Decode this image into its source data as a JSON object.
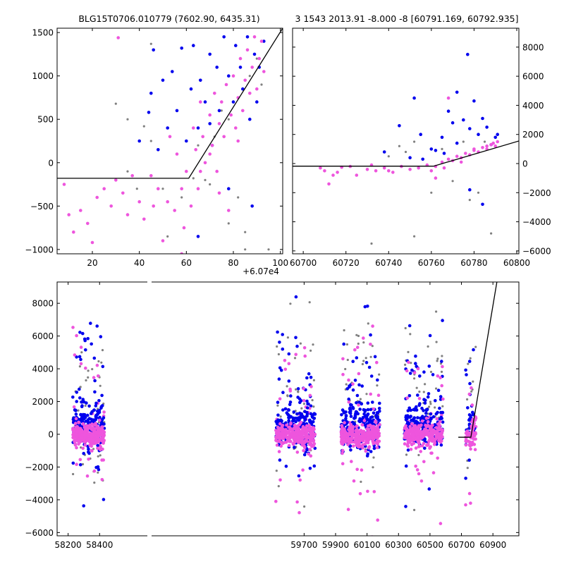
{
  "titles": {
    "left": "BLG15T0706.010779 (7602.90, 6435.31)",
    "right": "3 1543 2013.91 -8.000 -8 [60791.169, 60792.935]"
  },
  "colors": {
    "blue": "#0000ee",
    "pink": "#ee55dd",
    "gray": "#808080",
    "model_line": "#000000"
  },
  "chart_data": [
    {
      "id": "zoom-left",
      "type": "scatter",
      "title": "BLG15T0706.010779 (7602.90, 6435.31)",
      "xlim": [
        60705,
        60801
      ],
      "ylim": [
        -1050,
        1550
      ],
      "x_ticks": [
        60720,
        60740,
        60760,
        60780,
        60800
      ],
      "x_tick_labels": [
        "20",
        "40",
        "60",
        "80",
        "100"
      ],
      "x_offset_label": "+6.07e4",
      "y_ticks": [
        -1000,
        -500,
        0,
        500,
        1000,
        1500
      ],
      "y_tick_labels": [
        "−1000",
        "−500",
        "0",
        "500",
        "1000",
        "1500"
      ],
      "yaxis_side": "left",
      "model_line": [
        [
          60700,
          -180
        ],
        [
          60761,
          -180
        ],
        [
          60801,
          1550
        ]
      ],
      "series": [
        {
          "name": "gray",
          "color": "#808080",
          "size": 1.6,
          "values": [
            [
              60730,
              680
            ],
            [
              60735,
              -100
            ],
            [
              60735,
              500
            ],
            [
              60739,
              -300
            ],
            [
              60745,
              250
            ],
            [
              60742,
              420
            ],
            [
              60750,
              -300
            ],
            [
              60752,
              -850
            ],
            [
              60758,
              -400
            ],
            [
              60763,
              -180
            ],
            [
              60765,
              200
            ],
            [
              60768,
              -200
            ],
            [
              60772,
              300
            ],
            [
              60775,
              600
            ],
            [
              60778,
              500
            ],
            [
              60782,
              -400
            ],
            [
              60785,
              -800
            ],
            [
              60787,
              1000
            ],
            [
              60790,
              1200
            ],
            [
              60792,
              900
            ],
            [
              60795,
              -1000
            ],
            [
              60745,
              1370
            ],
            [
              60770,
              -250
            ],
            [
              60778,
              -700
            ],
            [
              60785,
              -1000
            ]
          ]
        },
        {
          "name": "blue",
          "color": "#0000ee",
          "size": 2.3,
          "values": [
            [
              60740,
              250
            ],
            [
              60744,
              580
            ],
            [
              60745,
              800
            ],
            [
              60746,
              1300
            ],
            [
              60748,
              150
            ],
            [
              60750,
              950
            ],
            [
              60752,
              400
            ],
            [
              60754,
              1050
            ],
            [
              60756,
              600
            ],
            [
              60758,
              1320
            ],
            [
              60760,
              250
            ],
            [
              60762,
              850
            ],
            [
              60763,
              1350
            ],
            [
              60765,
              400
            ],
            [
              60766,
              950
            ],
            [
              60768,
              700
            ],
            [
              60770,
              1250
            ],
            [
              60771,
              200
            ],
            [
              60773,
              1100
            ],
            [
              60774,
              600
            ],
            [
              60776,
              1450
            ],
            [
              60778,
              1000
            ],
            [
              60780,
              700
            ],
            [
              60781,
              1350
            ],
            [
              60783,
              1100
            ],
            [
              60784,
              850
            ],
            [
              60786,
              1450
            ],
            [
              60787,
              500
            ],
            [
              60789,
              1250
            ],
            [
              60790,
              700
            ],
            [
              60791,
              1100
            ],
            [
              60793,
              1400
            ],
            [
              60788,
              -500
            ],
            [
              60765,
              -850
            ],
            [
              60778,
              -300
            ],
            [
              60770,
              450
            ]
          ]
        },
        {
          "name": "pink",
          "color": "#ee55dd",
          "size": 2.3,
          "values": [
            [
              60708,
              -250
            ],
            [
              60710,
              -600
            ],
            [
              60712,
              -800
            ],
            [
              60715,
              -550
            ],
            [
              60718,
              -700
            ],
            [
              60720,
              -920
            ],
            [
              60722,
              -400
            ],
            [
              60725,
              -300
            ],
            [
              60728,
              -500
            ],
            [
              60730,
              -200
            ],
            [
              60731,
              1440
            ],
            [
              60733,
              -350
            ],
            [
              60735,
              -600
            ],
            [
              60737,
              -150
            ],
            [
              60740,
              -450
            ],
            [
              60742,
              -650
            ],
            [
              60745,
              -150
            ],
            [
              60746,
              -500
            ],
            [
              60748,
              -300
            ],
            [
              60750,
              -900
            ],
            [
              60752,
              -450
            ],
            [
              60753,
              300
            ],
            [
              60755,
              -550
            ],
            [
              60756,
              100
            ],
            [
              60758,
              -300
            ],
            [
              60759,
              -750
            ],
            [
              60760,
              -100
            ],
            [
              60762,
              -500
            ],
            [
              60763,
              400
            ],
            [
              60764,
              150
            ],
            [
              60765,
              -300
            ],
            [
              60766,
              700
            ],
            [
              60767,
              300
            ],
            [
              60768,
              0
            ],
            [
              60770,
              550
            ],
            [
              60771,
              200
            ],
            [
              60772,
              800
            ],
            [
              60773,
              -100
            ],
            [
              60774,
              450
            ],
            [
              60775,
              700
            ],
            [
              60776,
              300
            ],
            [
              60777,
              900
            ],
            [
              60778,
              -550
            ],
            [
              60779,
              550
            ],
            [
              60780,
              1000
            ],
            [
              60781,
              400
            ],
            [
              60782,
              750
            ],
            [
              60783,
              1200
            ],
            [
              60784,
              600
            ],
            [
              60785,
              950
            ],
            [
              60786,
              1300
            ],
            [
              60787,
              800
            ],
            [
              60788,
              1100
            ],
            [
              60789,
              1450
            ],
            [
              60790,
              850
            ],
            [
              60791,
              1200
            ],
            [
              60792,
              1400
            ],
            [
              60793,
              1050
            ],
            [
              60770,
              100
            ],
            [
              60782,
              250
            ],
            [
              60766,
              -100
            ],
            [
              60774,
              -350
            ],
            [
              60758,
              -1050
            ]
          ]
        }
      ]
    },
    {
      "id": "zoom-right",
      "type": "scatter",
      "xlim": [
        60695,
        60801
      ],
      "ylim": [
        -6200,
        9300
      ],
      "x_ticks": [
        60700,
        60720,
        60740,
        60760,
        60780,
        60800
      ],
      "x_tick_labels": [
        "60700",
        "60720",
        "60740",
        "60760",
        "60780",
        "60800"
      ],
      "y_ticks": [
        -6000,
        -4000,
        -2000,
        0,
        2000,
        4000,
        6000,
        8000
      ],
      "y_tick_labels": [
        "−6000",
        "−4000",
        "−2000",
        "0",
        "2000",
        "4000",
        "6000",
        "8000"
      ],
      "yaxis_side": "right",
      "model_line": [
        [
          60695,
          -180
        ],
        [
          60761,
          -180
        ],
        [
          60801,
          1550
        ]
      ],
      "series": [
        {
          "name": "gray",
          "color": "#808080",
          "size": 1.6,
          "values": [
            [
              60732,
              -5500
            ],
            [
              60752,
              -5000
            ],
            [
              60788,
              -4800
            ],
            [
              60760,
              -2000
            ],
            [
              60770,
              -1200
            ],
            [
              60778,
              -2500
            ],
            [
              60782,
              -2000
            ],
            [
              60748,
              800
            ],
            [
              60752,
              1500
            ],
            [
              60765,
              1000
            ],
            [
              60775,
              1500
            ],
            [
              60785,
              1500
            ],
            [
              60790,
              1200
            ],
            [
              60740,
              500
            ],
            [
              60745,
              1200
            ]
          ]
        },
        {
          "name": "blue",
          "color": "#0000ee",
          "size": 2.3,
          "values": [
            [
              60745,
              2600
            ],
            [
              60752,
              4500
            ],
            [
              60755,
              2000
            ],
            [
              60760,
              1000
            ],
            [
              60765,
              1800
            ],
            [
              60768,
              3600
            ],
            [
              60770,
              2800
            ],
            [
              60772,
              4900
            ],
            [
              60775,
              3000
            ],
            [
              60777,
              7500
            ],
            [
              60778,
              2400
            ],
            [
              60780,
              4300
            ],
            [
              60782,
              2000
            ],
            [
              60784,
              3100
            ],
            [
              60784,
              -2800
            ],
            [
              60778,
              -1800
            ],
            [
              60786,
              2500
            ],
            [
              60788,
              1300
            ],
            [
              60790,
              1800
            ],
            [
              60791,
              2000
            ],
            [
              60762,
              900
            ],
            [
              60766,
              700
            ],
            [
              60772,
              1400
            ],
            [
              60738,
              800
            ],
            [
              60750,
              400
            ],
            [
              60756,
              300
            ]
          ]
        },
        {
          "name": "pink",
          "color": "#ee55dd",
          "size": 2.3,
          "values": [
            [
              60708,
              -300
            ],
            [
              60710,
              -500
            ],
            [
              60712,
              -1400
            ],
            [
              60714,
              -800
            ],
            [
              60716,
              -600
            ],
            [
              60718,
              -250
            ],
            [
              60722,
              -200
            ],
            [
              60725,
              -800
            ],
            [
              60730,
              -400
            ],
            [
              60734,
              -500
            ],
            [
              60738,
              -300
            ],
            [
              60742,
              -600
            ],
            [
              60746,
              -200
            ],
            [
              60750,
              -400
            ],
            [
              60754,
              -300
            ],
            [
              60758,
              -100
            ],
            [
              60762,
              -200
            ],
            [
              60765,
              100
            ],
            [
              60768,
              300
            ],
            [
              60770,
              200
            ],
            [
              60772,
              500
            ],
            [
              60774,
              400
            ],
            [
              60776,
              700
            ],
            [
              60778,
              600
            ],
            [
              60780,
              900
            ],
            [
              60782,
              800
            ],
            [
              60784,
              1100
            ],
            [
              60786,
              1000
            ],
            [
              60788,
              1300
            ],
            [
              60790,
              1200
            ],
            [
              60791,
              1500
            ],
            [
              60760,
              -500
            ],
            [
              60766,
              -300
            ],
            [
              60774,
              100
            ],
            [
              60780,
              1000
            ],
            [
              60786,
              1200
            ],
            [
              60789,
              1400
            ],
            [
              60768,
              4500
            ],
            [
              60740,
              -500
            ],
            [
              60732,
              -100
            ],
            [
              60762,
              -1000
            ]
          ]
        }
      ]
    },
    {
      "id": "full-lightcurve",
      "type": "scatter",
      "xlim": [
        58130,
        61065
      ],
      "ylim": [
        -6200,
        9300
      ],
      "broken_x_axis": true,
      "gap_between_ticks": [
        "58400",
        "59700"
      ],
      "x_ticks": [
        58200,
        58400,
        59700,
        59900,
        60100,
        60300,
        60500,
        60700,
        60900
      ],
      "x_tick_labels": [
        "58200",
        "58400",
        "59700",
        "59900",
        "60100",
        "60300",
        "60500",
        "60700",
        "60900"
      ],
      "y_ticks": [
        -6000,
        -4000,
        -2000,
        0,
        2000,
        4000,
        6000,
        8000
      ],
      "y_tick_labels": [
        "−6000",
        "−4000",
        "−2000",
        "0",
        "2000",
        "4000",
        "6000",
        "8000"
      ],
      "yaxis_side": "left",
      "seasons": [
        [
          58230,
          58430
        ],
        [
          59520,
          59770
        ],
        [
          59935,
          60180
        ],
        [
          60337,
          60583
        ],
        [
          60726,
          60792
        ]
      ],
      "model_line": [
        [
          60680,
          -180
        ],
        [
          60760,
          -180
        ],
        [
          60925,
          9300
        ]
      ],
      "series": [
        {
          "name": "gray",
          "color": "#808080",
          "size": 1.6
        },
        {
          "name": "blue",
          "color": "#0000ee",
          "size": 2.3
        },
        {
          "name": "pink",
          "color": "#ee55dd",
          "size": 2.3
        }
      ]
    }
  ]
}
